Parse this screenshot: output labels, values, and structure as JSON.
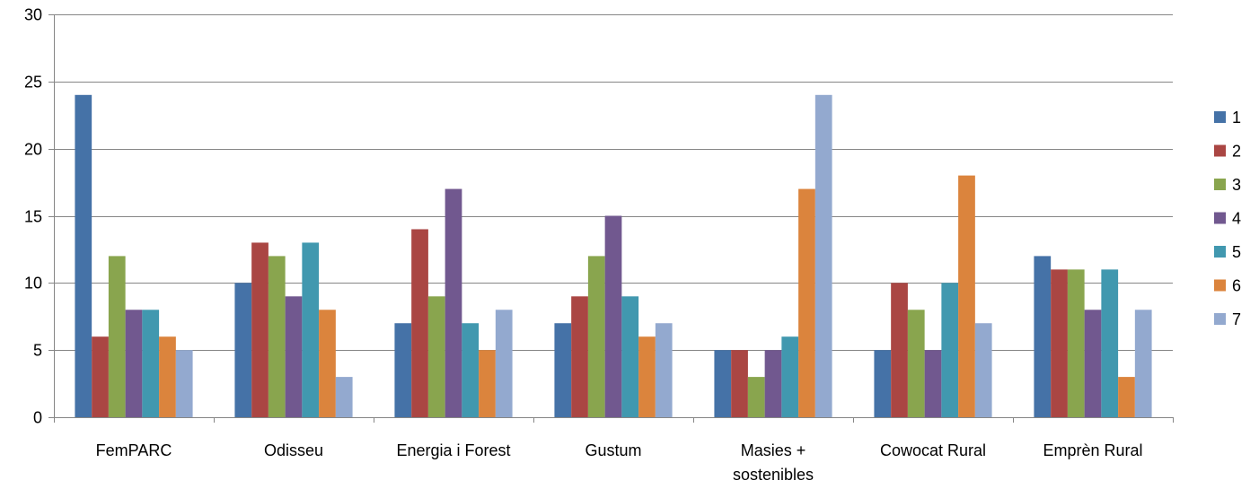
{
  "chart_data": {
    "type": "bar",
    "title": "",
    "xlabel": "",
    "ylabel": "",
    "ylim": [
      0,
      30
    ],
    "yticks": [
      "0",
      "5",
      "10",
      "15",
      "20",
      "25",
      "30"
    ],
    "categories": [
      [
        "FemPARC"
      ],
      [
        "Odisseu"
      ],
      [
        "Energia i Forest"
      ],
      [
        "Gustum"
      ],
      [
        "Masies +",
        "sostenibles"
      ],
      [
        "Cowocat Rural"
      ],
      [
        "Emprèn Rural"
      ]
    ],
    "grid": true,
    "legend_position": "right",
    "series": [
      {
        "name": "1",
        "color": "#4572A7",
        "values": [
          24,
          10,
          7,
          7,
          5,
          5,
          12
        ]
      },
      {
        "name": "2",
        "color": "#AA4643",
        "values": [
          6,
          13,
          14,
          9,
          5,
          10,
          11
        ]
      },
      {
        "name": "3",
        "color": "#89A54E",
        "values": [
          12,
          12,
          9,
          12,
          3,
          8,
          11
        ]
      },
      {
        "name": "4",
        "color": "#71588F",
        "values": [
          8,
          9,
          17,
          15,
          5,
          5,
          8
        ]
      },
      {
        "name": "5",
        "color": "#4198AF",
        "values": [
          8,
          13,
          7,
          9,
          6,
          10,
          11
        ]
      },
      {
        "name": "6",
        "color": "#DB843D",
        "values": [
          6,
          8,
          5,
          6,
          17,
          18,
          3
        ]
      },
      {
        "name": "7",
        "color": "#93A9CF",
        "values": [
          5,
          3,
          8,
          7,
          24,
          7,
          8
        ]
      }
    ]
  }
}
